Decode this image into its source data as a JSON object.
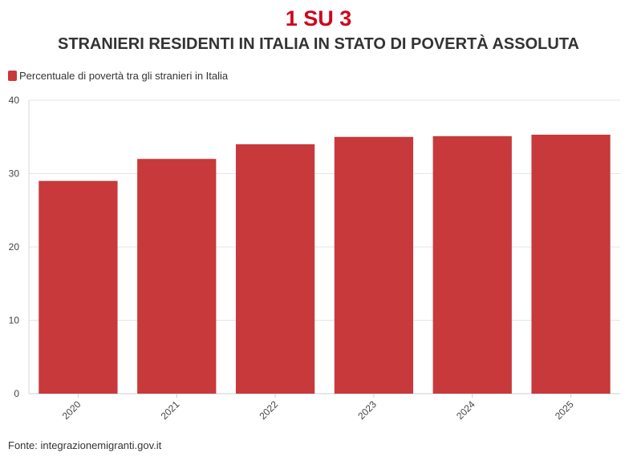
{
  "header": {
    "headline": "1 SU 3",
    "subheadline": "STRANIERI RESIDENTI IN ITALIA IN STATO DI POVERTÀ ASSOLUTA"
  },
  "footer": {
    "source": "Fonte: integrazionemigranti.gov.it"
  },
  "colors": {
    "bar": "#c8393c",
    "headline": "#d0021b",
    "grid": "#e6e6e6"
  },
  "chart_data": {
    "type": "bar",
    "title": "",
    "xlabel": "",
    "ylabel": "",
    "categories": [
      "2020",
      "2021",
      "2022",
      "2023",
      "2024",
      "2025"
    ],
    "series": [
      {
        "name": "Percentuale di povertà tra gli stranieri in Italia",
        "values": [
          29,
          32,
          34,
          35,
          35.1,
          35.3
        ]
      }
    ],
    "ylim": [
      0,
      40
    ],
    "yticks": [
      0,
      10,
      20,
      30,
      40
    ],
    "grid": true,
    "legend": "top-left"
  }
}
